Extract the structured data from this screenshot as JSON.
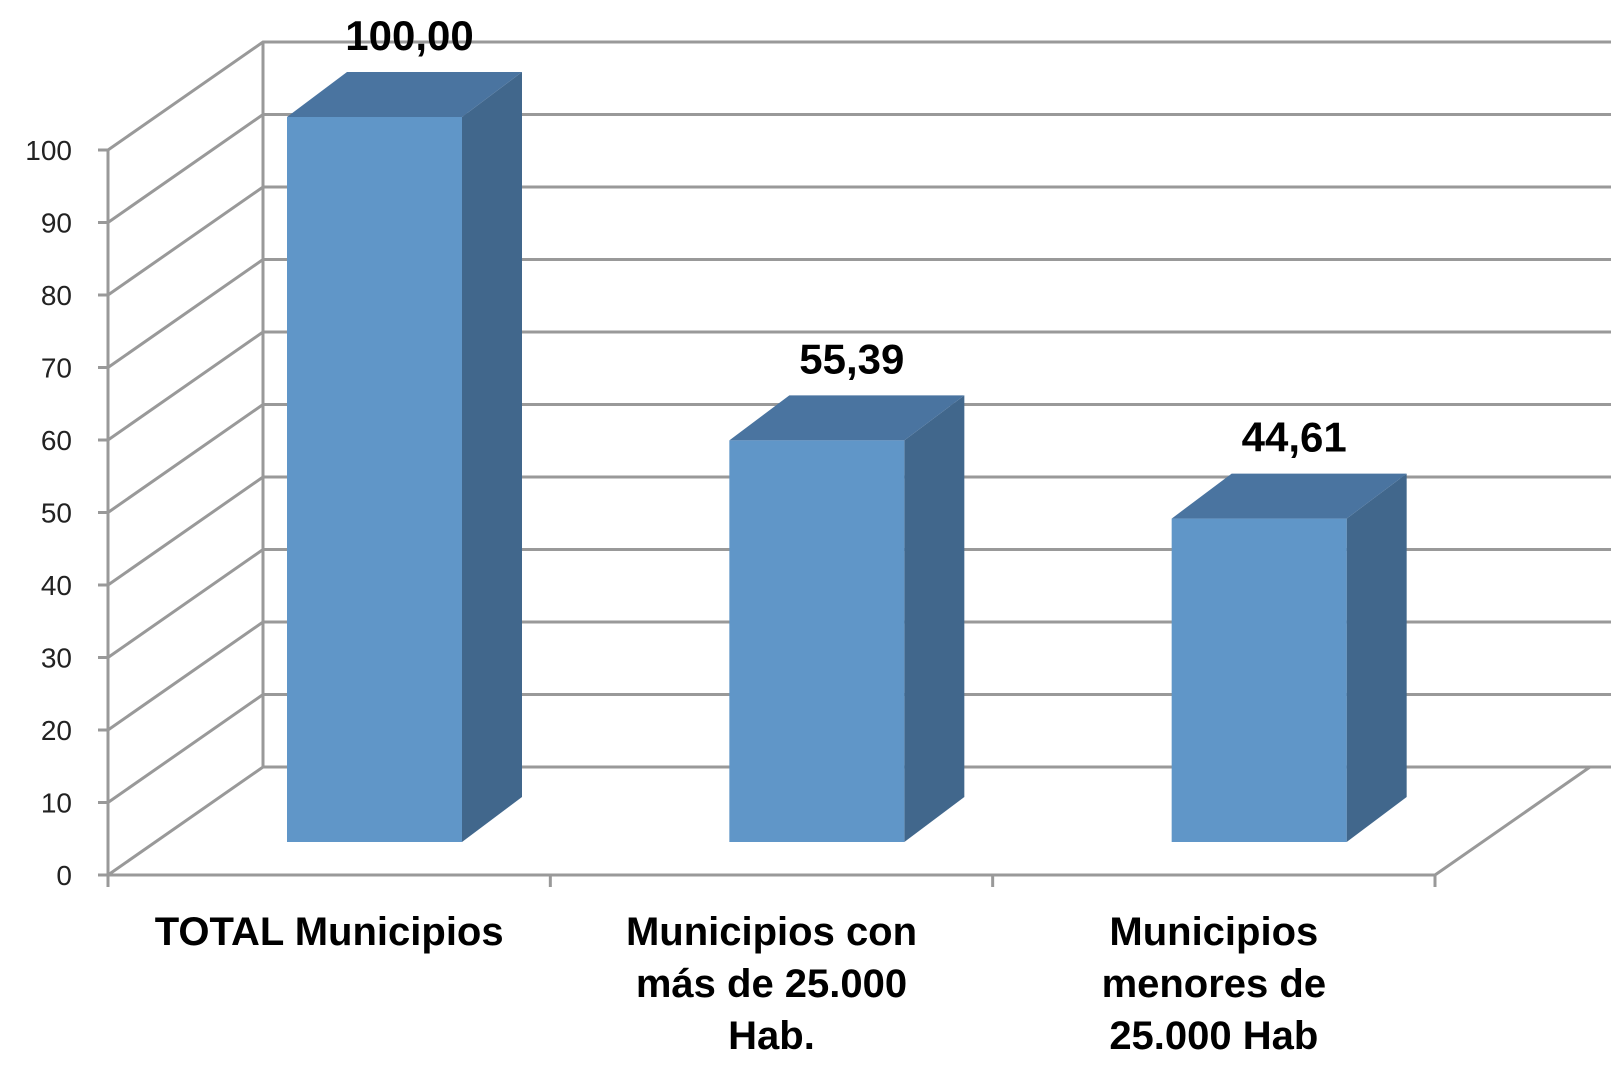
{
  "chart_data": {
    "type": "bar3d",
    "categories": [
      "TOTAL Municipios",
      "Municipios  con\nmás de 25.000\nHab.",
      "Municipios\nmenores de\n25.000 Hab"
    ],
    "values": [
      100,
      55.39,
      44.61
    ],
    "value_labels": [
      "100,00",
      "55,39",
      "44,61"
    ],
    "color": "#6096c8",
    "ylim": [
      0,
      100
    ],
    "yticks": [
      0,
      10,
      20,
      30,
      40,
      50,
      60,
      70,
      80,
      90,
      100
    ],
    "grid": true
  }
}
